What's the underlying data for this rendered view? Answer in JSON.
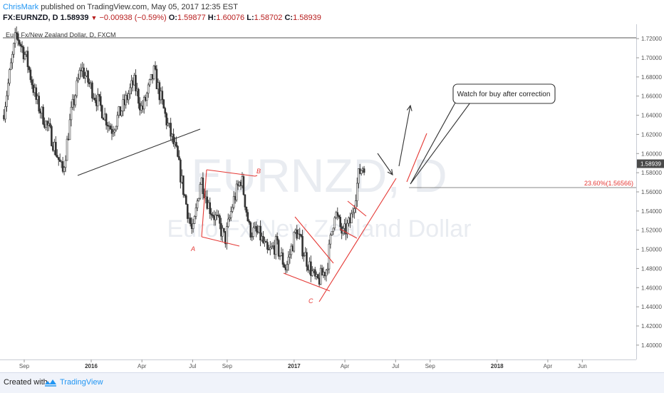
{
  "header": {
    "author": "ChrisMark",
    "published": "published on TradingView.com, May 05, 2017 12:35 EST",
    "symbol": "FX:EURNZD, D",
    "last": "1.58939",
    "change": "−0.00938 (−0.59%)",
    "o_label": "O:",
    "open": "1.59877",
    "h_label": "H:",
    "high": "1.60076",
    "l_label": "L:",
    "low": "1.58702",
    "c_label": "C:",
    "close": "1.58939"
  },
  "chart_data": {
    "type": "candlestick",
    "title": "Euro Fx/New Zealand Dollar, D, FXCM",
    "watermark_symbol": "EURNZD, D",
    "watermark_name": "Euro Fx/New Zealand Dollar",
    "ylim": [
      1.385,
      1.735
    ],
    "yticks": [
      "1.72000",
      "1.70000",
      "1.68000",
      "1.66000",
      "1.64000",
      "1.62000",
      "1.60000",
      "1.58000",
      "1.56000",
      "1.54000",
      "1.52000",
      "1.50000",
      "1.48000",
      "1.46000",
      "1.44000",
      "1.42000",
      "1.40000"
    ],
    "current_price_label": "1.58939",
    "current_price": 1.58939,
    "xtick_labels": [
      {
        "label": "Sep",
        "x": 2015.67,
        "bold": false
      },
      {
        "label": "2016",
        "x": 2016.0,
        "bold": true
      },
      {
        "label": "Apr",
        "x": 2016.25,
        "bold": false
      },
      {
        "label": "Jul",
        "x": 2016.5,
        "bold": false
      },
      {
        "label": "Sep",
        "x": 2016.67,
        "bold": false
      },
      {
        "label": "2017",
        "x": 2017.0,
        "bold": true
      },
      {
        "label": "Apr",
        "x": 2017.25,
        "bold": false
      },
      {
        "label": "Jul",
        "x": 2017.5,
        "bold": false
      },
      {
        "label": "Sep",
        "x": 2017.67,
        "bold": false
      },
      {
        "label": "2018",
        "x": 2018.0,
        "bold": true
      },
      {
        "label": "Apr",
        "x": 2018.25,
        "bold": false
      },
      {
        "label": "Jun",
        "x": 2018.42,
        "bold": false
      }
    ],
    "price_path": [
      [
        2015.57,
        1.645
      ],
      [
        2015.63,
        1.725
      ],
      [
        2015.68,
        1.7
      ],
      [
        2015.73,
        1.655
      ],
      [
        2015.8,
        1.62
      ],
      [
        2015.86,
        1.58
      ],
      [
        2015.9,
        1.64
      ],
      [
        2015.95,
        1.69
      ],
      [
        2016.02,
        1.66
      ],
      [
        2016.1,
        1.625
      ],
      [
        2016.16,
        1.65
      ],
      [
        2016.21,
        1.675
      ],
      [
        2016.25,
        1.645
      ],
      [
        2016.31,
        1.685
      ],
      [
        2016.37,
        1.635
      ],
      [
        2016.42,
        1.6
      ],
      [
        2016.47,
        1.545
      ],
      [
        2016.5,
        1.515
      ],
      [
        2016.54,
        1.575
      ],
      [
        2016.58,
        1.545
      ],
      [
        2016.62,
        1.53
      ],
      [
        2016.66,
        1.51
      ],
      [
        2016.7,
        1.55
      ],
      [
        2016.74,
        1.575
      ],
      [
        2016.78,
        1.52
      ],
      [
        2016.83,
        1.515
      ],
      [
        2016.87,
        1.495
      ],
      [
        2016.91,
        1.505
      ],
      [
        2016.96,
        1.48
      ],
      [
        2017.01,
        1.52
      ],
      [
        2017.06,
        1.49
      ],
      [
        2017.11,
        1.465
      ],
      [
        2017.16,
        1.48
      ],
      [
        2017.2,
        1.54
      ],
      [
        2017.24,
        1.515
      ],
      [
        2017.28,
        1.53
      ],
      [
        2017.32,
        1.58
      ],
      [
        2017.345,
        1.589
      ]
    ],
    "annotations": {
      "wave_labels": [
        "A",
        "B",
        "C"
      ],
      "callout": "Watch for buy after correction",
      "fib_label": "23.60%(1.56566)",
      "fib_level": 1.56566
    }
  },
  "footer": {
    "created": "Created with",
    "brand": "TradingView"
  },
  "colors": {
    "up": "#555555",
    "down": "#333333",
    "annotation_red": "#e53935",
    "trendline": "#333333",
    "axis_text": "#555555",
    "footer_bg": "#f0f3fa",
    "brand_blue": "#2196f3"
  }
}
